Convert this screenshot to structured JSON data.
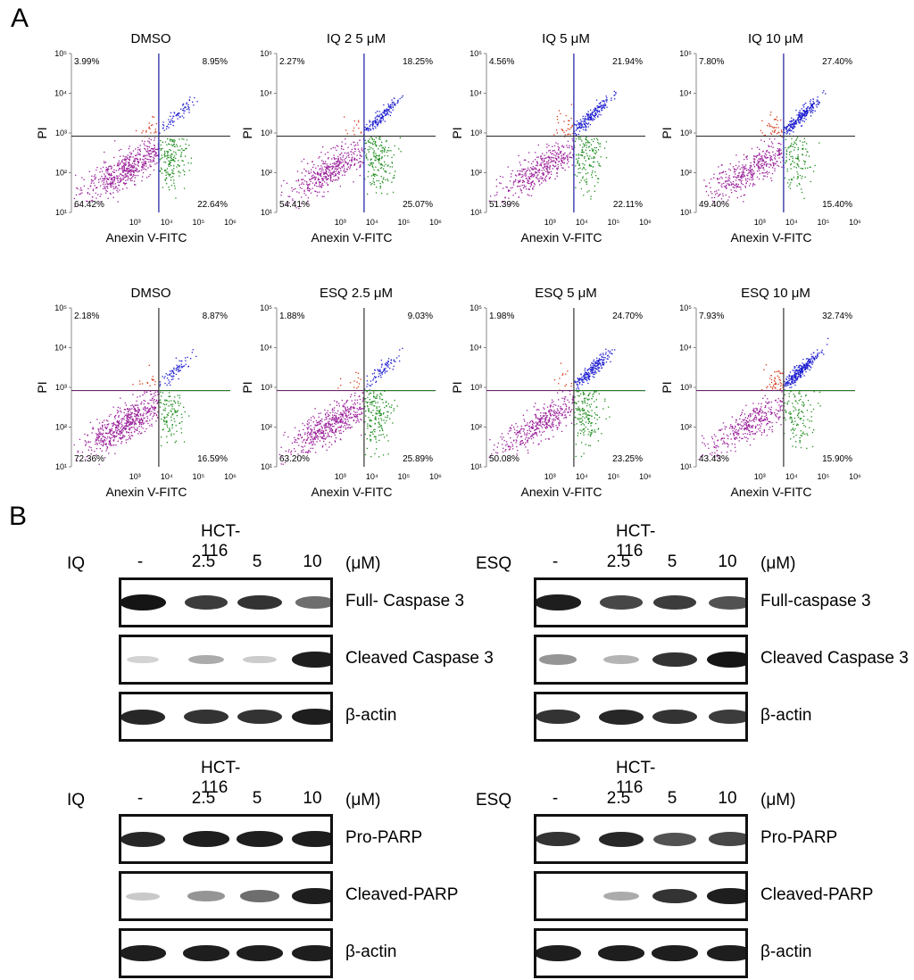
{
  "panel_a_label": "A",
  "panel_b_label": "B",
  "chart_data": [
    {
      "type": "scatter",
      "title": "DMSO",
      "xlabel": "Anexin V-FITC",
      "ylabel": "PI",
      "x_ticks": [
        "10³",
        "10⁴",
        "10⁵",
        "10⁶"
      ],
      "y_ticks": [
        "10¹",
        "10²",
        "10³",
        "10⁴",
        "10⁵"
      ],
      "x_range": [
        10,
        1000000
      ],
      "y_range": [
        10,
        100000
      ],
      "quadrants": {
        "upper_left": "3.99%",
        "upper_right": "8.95%",
        "lower_left": "64.42%",
        "lower_right": "22.64%"
      }
    },
    {
      "type": "scatter",
      "title": "IQ 2 5 μM",
      "xlabel": "Anexin V-FITC",
      "ylabel": "PI",
      "x_ticks": [
        "10³",
        "10⁴",
        "10⁵",
        "10⁶"
      ],
      "y_ticks": [
        "10¹",
        "10²",
        "10³",
        "10⁴",
        "10⁵"
      ],
      "x_range": [
        10,
        1000000
      ],
      "y_range": [
        10,
        100000
      ],
      "quadrants": {
        "upper_left": "2.27%",
        "upper_right": "18.25%",
        "lower_left": "54.41%",
        "lower_right": "25.07%"
      }
    },
    {
      "type": "scatter",
      "title": "IQ 5 μM",
      "xlabel": "Anexin V-FITC",
      "ylabel": "PI",
      "x_ticks": [
        "10³",
        "10⁴",
        "10⁵",
        "10⁶"
      ],
      "y_ticks": [
        "10¹",
        "10²",
        "10³",
        "10⁴",
        "10⁵"
      ],
      "x_range": [
        10,
        1000000
      ],
      "y_range": [
        10,
        100000
      ],
      "quadrants": {
        "upper_left": "4.56%",
        "upper_right": "21.94%",
        "lower_left": "51.39%",
        "lower_right": "22.11%"
      }
    },
    {
      "type": "scatter",
      "title": "IQ 10 μM",
      "xlabel": "Anexin V-FITC",
      "ylabel": "PI",
      "x_ticks": [
        "10³",
        "10⁴",
        "10⁵",
        "10⁶"
      ],
      "y_ticks": [
        "10¹",
        "10²",
        "10³",
        "10⁴",
        "10⁵"
      ],
      "x_range": [
        10,
        1000000
      ],
      "y_range": [
        10,
        100000
      ],
      "quadrants": {
        "upper_left": "7.80%",
        "upper_right": "27.40%",
        "lower_left": "49.40%",
        "lower_right": "15.40%"
      }
    },
    {
      "type": "scatter",
      "title": "DMSO",
      "xlabel": "Anexin V-FITC",
      "ylabel": "PI",
      "x_ticks": [
        "10³",
        "10⁴",
        "10⁵",
        "10⁶"
      ],
      "y_ticks": [
        "10¹",
        "10²",
        "10³",
        "10⁴",
        "10⁵"
      ],
      "x_range": [
        10,
        1000000
      ],
      "y_range": [
        10,
        100000
      ],
      "quadrants": {
        "upper_left": "2.18%",
        "upper_right": "8.87%",
        "lower_left": "72.36%",
        "lower_right": "16.59%"
      }
    },
    {
      "type": "scatter",
      "title": "ESQ 2.5 μM",
      "xlabel": "Anexin V-FITC",
      "ylabel": "PI",
      "x_ticks": [
        "10³",
        "10⁴",
        "10⁵",
        "10⁶"
      ],
      "y_ticks": [
        "10¹",
        "10²",
        "10³",
        "10⁴",
        "10⁵"
      ],
      "x_range": [
        10,
        1000000
      ],
      "y_range": [
        10,
        100000
      ],
      "quadrants": {
        "upper_left": "1.88%",
        "upper_right": "9.03%",
        "lower_left": "63.20%",
        "lower_right": "25.89%"
      }
    },
    {
      "type": "scatter",
      "title": "ESQ 5 μM",
      "xlabel": "Anexin V-FITC",
      "ylabel": "PI",
      "x_ticks": [
        "10³",
        "10⁴",
        "10⁵",
        "10⁶"
      ],
      "y_ticks": [
        "10¹",
        "10²",
        "10³",
        "10⁴",
        "10⁵"
      ],
      "x_range": [
        10,
        1000000
      ],
      "y_range": [
        10,
        100000
      ],
      "quadrants": {
        "upper_left": "1.98%",
        "upper_right": "24.70%",
        "lower_left": "50.08%",
        "lower_right": "23.25%"
      }
    },
    {
      "type": "scatter",
      "title": "ESQ 10 μM",
      "xlabel": "Anexin V-FITC",
      "ylabel": "PI",
      "x_ticks": [
        "10³",
        "10⁴",
        "10⁵",
        "10⁶"
      ],
      "y_ticks": [
        "10¹",
        "10²",
        "10³",
        "10⁴",
        "10⁵"
      ],
      "x_range": [
        10,
        1000000
      ],
      "y_range": [
        10,
        100000
      ],
      "quadrants": {
        "upper_left": "7.93%",
        "upper_right": "32.74%",
        "lower_left": "43.43%",
        "lower_right": "15.90%"
      }
    }
  ],
  "western_blots": [
    {
      "title": "HCT-116",
      "drug": "IQ",
      "lanes": [
        "-",
        "2.5",
        "5",
        "10"
      ],
      "unit": "(μM)",
      "rows": [
        {
          "label": "Full- Caspase 3",
          "intensity": [
            1.0,
            0.8,
            0.85,
            0.55
          ]
        },
        {
          "label": "Cleaved Caspase 3",
          "intensity": [
            0.05,
            0.25,
            0.08,
            0.95
          ]
        },
        {
          "label": "β-actin",
          "intensity": [
            0.9,
            0.85,
            0.85,
            0.95
          ]
        }
      ]
    },
    {
      "title": "HCT-116",
      "drug": "ESQ",
      "lanes": [
        "-",
        "2.5",
        "5",
        "10"
      ],
      "unit": "(μM)",
      "rows": [
        {
          "label": "Full-caspase 3",
          "intensity": [
            0.95,
            0.75,
            0.8,
            0.7
          ]
        },
        {
          "label": "Cleaved Caspase 3",
          "intensity": [
            0.35,
            0.2,
            0.85,
            1.0
          ]
        },
        {
          "label": "β-actin",
          "intensity": [
            0.85,
            0.9,
            0.85,
            0.8
          ]
        }
      ]
    },
    {
      "title": "HCT-116",
      "drug": "IQ",
      "lanes": [
        "-",
        "2.5",
        "5",
        "10"
      ],
      "unit": "(μM)",
      "rows": [
        {
          "label": "Pro-PARP",
          "intensity": [
            0.9,
            0.95,
            0.95,
            0.95
          ]
        },
        {
          "label": "Cleaved-PARP",
          "intensity": [
            0.1,
            0.35,
            0.55,
            0.95
          ]
        },
        {
          "label": "β-actin",
          "intensity": [
            0.95,
            0.95,
            0.95,
            0.95
          ]
        }
      ]
    },
    {
      "title": "HCT-116",
      "drug": "ESQ",
      "lanes": [
        "-",
        "2.5",
        "5",
        "10"
      ],
      "unit": "(μM)",
      "rows": [
        {
          "label": "Pro-PARP",
          "intensity": [
            0.85,
            0.9,
            0.7,
            0.75
          ]
        },
        {
          "label": "Cleaved-PARP",
          "intensity": [
            0.0,
            0.25,
            0.85,
            0.95
          ]
        },
        {
          "label": "β-actin",
          "intensity": [
            0.95,
            0.95,
            0.95,
            0.95
          ]
        }
      ]
    }
  ]
}
